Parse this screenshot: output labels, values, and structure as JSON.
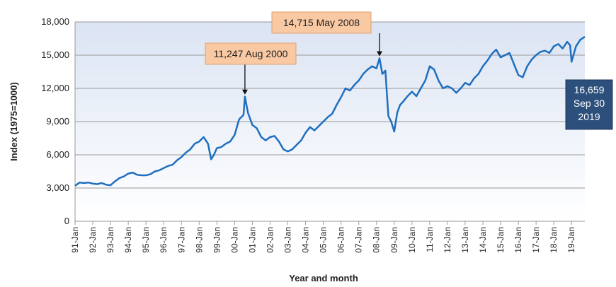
{
  "colors": {
    "line": "#1f6fbf",
    "plot_bg_top": "#dbe4f3",
    "plot_bg_bottom": "#ffffff",
    "grid": "#9a9a9a",
    "callout_fill": "#f9c9a4",
    "callout_border": "#e0a070",
    "end_box_fill": "#2c4f7c"
  },
  "chart_data": {
    "type": "line",
    "title": "",
    "xlabel": "Year and month",
    "ylabel": "Index (1975=1000)",
    "ylim": [
      0,
      18000
    ],
    "yticks": [
      0,
      3000,
      6000,
      9000,
      12000,
      15000,
      18000
    ],
    "ytick_labels": [
      "0",
      "3,000",
      "6,000",
      "9,000",
      "12,000",
      "15,000",
      "18,000"
    ],
    "xlim": [
      1991.0,
      2019.75
    ],
    "xtick_labels": [
      "91-Jan",
      "92-Jan",
      "93-Jan",
      "94-Jan",
      "95-Jan",
      "96-Jan",
      "97-Jan",
      "98-Jan",
      "99-Jan",
      "00-Jan",
      "01-Jan",
      "02-Jan",
      "03-Jan",
      "04-Jan",
      "05-Jan",
      "06-Jan",
      "07-Jan",
      "08-Jan",
      "09-Jan",
      "10-Jan",
      "11-Jan",
      "12-Jan",
      "13-Jan",
      "14-Jan",
      "15-Jan",
      "16-Jan",
      "17-Jan",
      "18-Jan",
      "19-Jan"
    ],
    "grid": true,
    "series": [
      {
        "x": [
          1991.0,
          1991.25,
          1991.5,
          1991.75,
          1992.0,
          1992.25,
          1992.5,
          1992.75,
          1993.0,
          1993.25,
          1993.5,
          1993.75,
          1994.0,
          1994.25,
          1994.5,
          1994.75,
          1995.0,
          1995.25,
          1995.5,
          1995.75,
          1996.0,
          1996.25,
          1996.5,
          1996.75,
          1997.0,
          1997.25,
          1997.5,
          1997.75,
          1998.0,
          1998.25,
          1998.5,
          1998.67,
          1998.83,
          1999.0,
          1999.25,
          1999.5,
          1999.75,
          2000.0,
          2000.25,
          2000.5,
          2000.58,
          2000.75,
          2001.0,
          2001.25,
          2001.5,
          2001.75,
          2002.0,
          2002.25,
          2002.5,
          2002.75,
          2003.0,
          2003.25,
          2003.5,
          2003.75,
          2004.0,
          2004.25,
          2004.5,
          2004.75,
          2005.0,
          2005.25,
          2005.5,
          2005.75,
          2006.0,
          2006.25,
          2006.5,
          2006.75,
          2007.0,
          2007.25,
          2007.5,
          2007.75,
          2008.0,
          2008.17,
          2008.33,
          2008.5,
          2008.67,
          2008.83,
          2009.0,
          2009.17,
          2009.33,
          2009.5,
          2009.75,
          2010.0,
          2010.25,
          2010.5,
          2010.75,
          2011.0,
          2011.25,
          2011.5,
          2011.75,
          2012.0,
          2012.25,
          2012.5,
          2012.75,
          2013.0,
          2013.25,
          2013.5,
          2013.75,
          2014.0,
          2014.25,
          2014.5,
          2014.75,
          2015.0,
          2015.25,
          2015.5,
          2015.75,
          2016.0,
          2016.25,
          2016.5,
          2016.75,
          2017.0,
          2017.25,
          2017.5,
          2017.75,
          2018.0,
          2018.25,
          2018.5,
          2018.75,
          2018.92,
          2019.0,
          2019.25,
          2019.5,
          2019.75
        ],
        "y": [
          3200,
          3500,
          3450,
          3500,
          3400,
          3350,
          3450,
          3300,
          3250,
          3600,
          3900,
          4050,
          4300,
          4400,
          4200,
          4150,
          4150,
          4250,
          4500,
          4600,
          4800,
          5000,
          5100,
          5500,
          5800,
          6200,
          6500,
          7000,
          7200,
          7600,
          7000,
          5600,
          6000,
          6600,
          6700,
          7000,
          7200,
          7800,
          9200,
          9600,
          11247,
          9800,
          8700,
          8400,
          7600,
          7300,
          7600,
          7700,
          7200,
          6500,
          6300,
          6500,
          6900,
          7300,
          8000,
          8500,
          8200,
          8600,
          9000,
          9400,
          9700,
          10500,
          11200,
          12000,
          11800,
          12300,
          12700,
          13300,
          13700,
          14000,
          13800,
          14715,
          13300,
          13600,
          9500,
          9000,
          8100,
          9800,
          10500,
          10800,
          11300,
          11700,
          11300,
          12000,
          12700,
          14000,
          13700,
          12700,
          12000,
          12200,
          12000,
          11600,
          12000,
          12500,
          12300,
          12900,
          13300,
          14000,
          14500,
          15100,
          15500,
          14800,
          15000,
          15200,
          14200,
          13200,
          13000,
          14000,
          14600,
          15000,
          15300,
          15400,
          15200,
          15800,
          16000,
          15600,
          16200,
          15900,
          14400,
          15800,
          16400,
          16659
        ]
      }
    ],
    "annotations": [
      {
        "text": "11,247 Aug 2000",
        "x": 2000.58,
        "y": 11247
      },
      {
        "text": "14,715 May 2008",
        "x": 2008.17,
        "y": 14715
      }
    ],
    "end_label": [
      "16,659",
      "Sep 30",
      "2019"
    ]
  }
}
